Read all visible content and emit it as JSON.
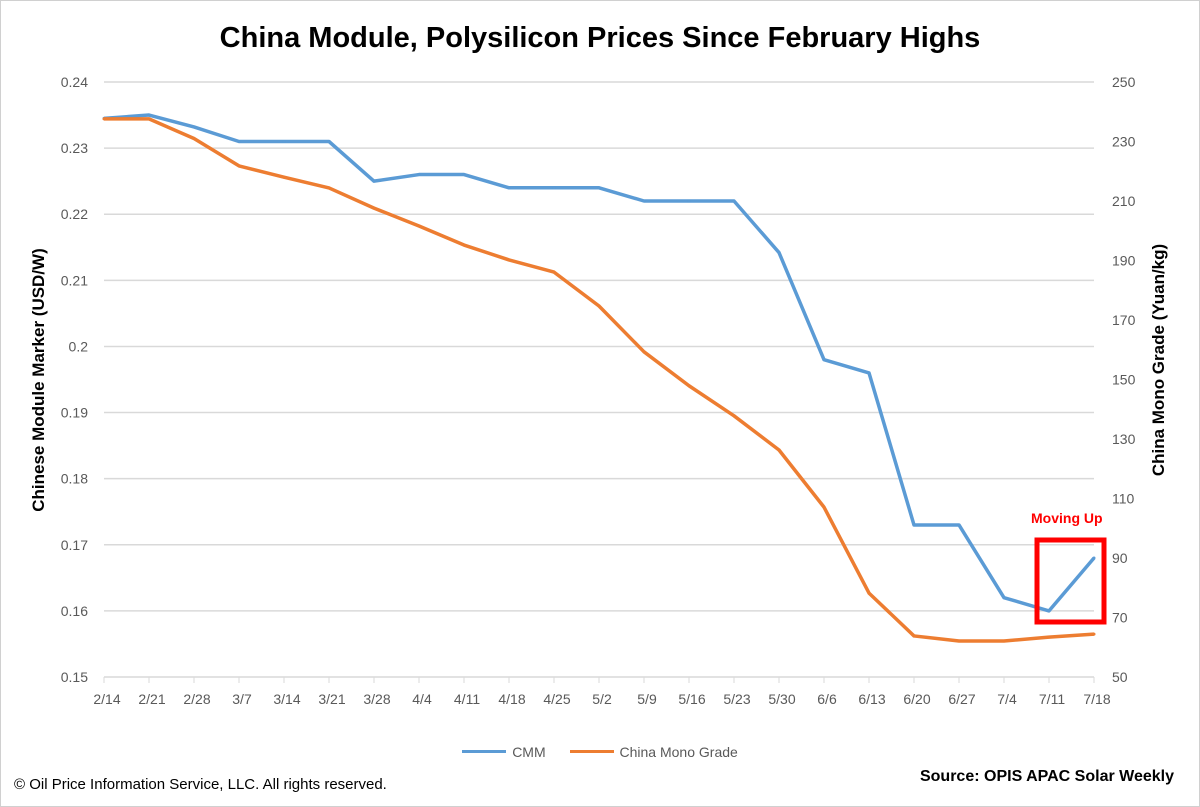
{
  "chart_data": {
    "type": "line",
    "title": "China Module, Polysilicon Prices Since February Highs",
    "categories": [
      "2/14",
      "2/21",
      "2/28",
      "3/7",
      "3/14",
      "3/21",
      "3/28",
      "4/4",
      "4/11",
      "4/18",
      "4/25",
      "5/2",
      "5/9",
      "5/16",
      "5/23",
      "5/30",
      "6/6",
      "6/13",
      "6/20",
      "6/27",
      "7/4",
      "7/11",
      "7/18"
    ],
    "ylabel": "Chinese Module Marker (USD/W)",
    "ylim": [
      0.15,
      0.24
    ],
    "yticks": [
      "0.15",
      "0.16",
      "0.17",
      "0.18",
      "0.19",
      "0.2",
      "0.21",
      "0.22",
      "0.23",
      "0.24"
    ],
    "y2label": "China Mono Grade (Yuan/kg)",
    "y2lim": [
      50,
      250
    ],
    "y2ticks": [
      "50",
      "70",
      "90",
      "110",
      "130",
      "150",
      "170",
      "190",
      "210",
      "230",
      "250"
    ],
    "grid": true,
    "legend": "bottom",
    "series": [
      {
        "name": "CMM",
        "axis": "left",
        "color": "#5b9bd5",
        "values": [
          0.2345,
          0.235,
          0.2332,
          0.231,
          0.231,
          0.231,
          0.225,
          0.226,
          0.226,
          0.224,
          0.224,
          0.224,
          0.222,
          0.222,
          0.222,
          0.2142,
          0.198,
          0.196,
          0.173,
          0.173,
          0.162,
          0.16,
          0.168
        ]
      },
      {
        "name": "China Mono Grade",
        "axis": "right",
        "color": "#ed7d31",
        "values": [
          237.6,
          237.6,
          231,
          221.8,
          218,
          214.4,
          207.6,
          201.6,
          195.2,
          190.2,
          186.1,
          174.7,
          159.3,
          147.9,
          137.8,
          126.3,
          107.1,
          78.2,
          63.8,
          62.1,
          62.1,
          63.4,
          64.4
        ]
      }
    ],
    "annotation": {
      "text": "Moving Up",
      "color": "#ff0000",
      "highlights": [
        "7/11",
        "7/18"
      ]
    }
  },
  "footer": {
    "copyright": "© Oil Price Information Service, LLC.  All rights reserved.",
    "source": "Source: OPIS APAC Solar Weekly"
  }
}
